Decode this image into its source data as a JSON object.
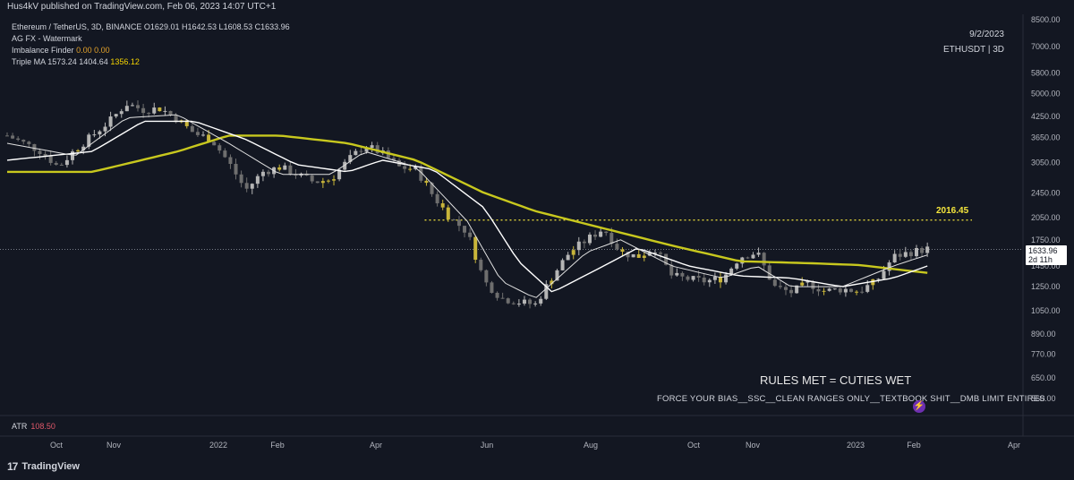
{
  "publisher": "Hus4kV published on TradingView.com, Feb 06, 2023 14:07 UTC+1",
  "legend": {
    "title": "Ethereum / TetherUS, 3D, BINANCE",
    "ohlc": {
      "O": "1629.01",
      "H": "1642.53",
      "L": "1608.53",
      "C": "1633.96"
    },
    "o_label": "O",
    "h_label": "H",
    "l_label": "L",
    "c_label": "C",
    "indicator1": "AG FX - Watermark",
    "indicator2_name": "Imbalance Finder",
    "indicator2_v1": "0.00",
    "indicator2_v2": "0.00",
    "indicator3_name": "Triple MA",
    "indicator3_v1": "1573.24",
    "indicator3_v2": "1404.64",
    "indicator3_v3": "1356.12"
  },
  "watermark": {
    "date": "9/2/2023",
    "symbol": "ETHUSDT | 3D"
  },
  "atr": {
    "label": "ATR",
    "value": "108.50"
  },
  "annotations": {
    "headline": "RULES MET = CUTIES WET",
    "subline": "FORCE YOUR BIAS__SSC__CLEAN RANGES ONLY__TEXTBOOK SHIT__DMB LIMIT ENTIRES",
    "level": "2016.45"
  },
  "price_tag": {
    "price": "1633.96",
    "countdown": "2d 11h"
  },
  "footer": {
    "brand": "TradingView",
    "logo": "17"
  },
  "colors": {
    "background": "#131722",
    "candle_up": "#b5b5b5",
    "candle_down": "#6e6e6e",
    "candle_highlight": "#c8b53a",
    "ma_fast": "#e0e0e0",
    "ma_mid": "#ffffff",
    "ma_slow": "#c8c81e",
    "level_line": "#f5e63c"
  },
  "chart_data": {
    "type": "candlestick",
    "scale": "log",
    "y_ticks": [
      8500,
      7000,
      5800,
      5000,
      4250,
      3650,
      3050,
      2450,
      2050,
      1750,
      1450,
      1250,
      1050,
      890,
      770,
      650,
      560
    ],
    "y_tick_labels": [
      "8500.00",
      "7000.00",
      "5800.00",
      "5000.00",
      "4250.00",
      "3650.00",
      "3050.00",
      "2450.00",
      "2050.00",
      "1750.00",
      "1450.00",
      "1250.00",
      "1050.00",
      "890.00",
      "770.00",
      "650.00",
      "560.00"
    ],
    "x_tick_labels": [
      "Oct",
      "Nov",
      "2022",
      "Feb",
      "Apr",
      "Jun",
      "Aug",
      "Oct",
      "Nov",
      "2023",
      "Feb",
      "Apr"
    ],
    "path": [
      [
        0,
        3700
      ],
      [
        0.02,
        3500
      ],
      [
        0.04,
        3300
      ],
      [
        0.06,
        2950
      ],
      [
        0.08,
        3350
      ],
      [
        0.1,
        3700
      ],
      [
        0.12,
        4100
      ],
      [
        0.14,
        4650
      ],
      [
        0.16,
        4450
      ],
      [
        0.18,
        4500
      ],
      [
        0.2,
        4150
      ],
      [
        0.22,
        3750
      ],
      [
        0.24,
        3600
      ],
      [
        0.26,
        3050
      ],
      [
        0.28,
        2500
      ],
      [
        0.3,
        2850
      ],
      [
        0.32,
        2950
      ],
      [
        0.34,
        2800
      ],
      [
        0.36,
        2650
      ],
      [
        0.38,
        2700
      ],
      [
        0.4,
        3100
      ],
      [
        0.42,
        3450
      ],
      [
        0.44,
        3250
      ],
      [
        0.46,
        2950
      ],
      [
        0.48,
        2900
      ],
      [
        0.5,
        2400
      ],
      [
        0.52,
        2050
      ],
      [
        0.54,
        1850
      ],
      [
        0.56,
        1300
      ],
      [
        0.58,
        1150
      ],
      [
        0.6,
        1120
      ],
      [
        0.62,
        1100
      ],
      [
        0.64,
        1350
      ],
      [
        0.66,
        1600
      ],
      [
        0.68,
        1750
      ],
      [
        0.7,
        1900
      ],
      [
        0.72,
        1600
      ],
      [
        0.74,
        1550
      ],
      [
        0.76,
        1650
      ],
      [
        0.78,
        1350
      ],
      [
        0.8,
        1320
      ],
      [
        0.82,
        1300
      ],
      [
        0.84,
        1330
      ],
      [
        0.86,
        1550
      ],
      [
        0.88,
        1600
      ],
      [
        0.9,
        1250
      ],
      [
        0.92,
        1200
      ],
      [
        0.94,
        1280
      ],
      [
        0.96,
        1210
      ],
      [
        0.98,
        1230
      ],
      [
        1.0,
        1210
      ],
      [
        1.02,
        1300
      ],
      [
        1.04,
        1550
      ],
      [
        1.06,
        1600
      ],
      [
        1.08,
        1640
      ]
    ],
    "ma_slow_path": [
      [
        0,
        2850
      ],
      [
        0.1,
        2850
      ],
      [
        0.2,
        3300
      ],
      [
        0.26,
        3700
      ],
      [
        0.32,
        3700
      ],
      [
        0.4,
        3500
      ],
      [
        0.48,
        3100
      ],
      [
        0.56,
        2450
      ],
      [
        0.62,
        2150
      ],
      [
        0.7,
        1900
      ],
      [
        0.78,
        1680
      ],
      [
        0.86,
        1500
      ],
      [
        0.94,
        1480
      ],
      [
        1.0,
        1460
      ],
      [
        1.08,
        1380
      ]
    ],
    "ma_mid_path": [
      [
        0,
        3100
      ],
      [
        0.1,
        3300
      ],
      [
        0.16,
        4100
      ],
      [
        0.22,
        4100
      ],
      [
        0.28,
        3600
      ],
      [
        0.34,
        3000
      ],
      [
        0.4,
        2850
      ],
      [
        0.44,
        3100
      ],
      [
        0.5,
        2900
      ],
      [
        0.56,
        2200
      ],
      [
        0.6,
        1500
      ],
      [
        0.64,
        1200
      ],
      [
        0.7,
        1450
      ],
      [
        0.74,
        1650
      ],
      [
        0.8,
        1450
      ],
      [
        0.86,
        1350
      ],
      [
        0.92,
        1330
      ],
      [
        0.98,
        1250
      ],
      [
        1.04,
        1330
      ],
      [
        1.08,
        1450
      ]
    ],
    "ma_fast_path": [
      [
        0,
        3500
      ],
      [
        0.08,
        3200
      ],
      [
        0.14,
        4200
      ],
      [
        0.2,
        4300
      ],
      [
        0.26,
        3500
      ],
      [
        0.32,
        2800
      ],
      [
        0.38,
        2800
      ],
      [
        0.42,
        3300
      ],
      [
        0.48,
        2950
      ],
      [
        0.54,
        2000
      ],
      [
        0.58,
        1300
      ],
      [
        0.62,
        1150
      ],
      [
        0.68,
        1600
      ],
      [
        0.72,
        1750
      ],
      [
        0.78,
        1450
      ],
      [
        0.84,
        1330
      ],
      [
        0.88,
        1450
      ],
      [
        0.92,
        1250
      ],
      [
        0.98,
        1250
      ],
      [
        1.04,
        1450
      ],
      [
        1.08,
        1570
      ]
    ],
    "level": 2016.45,
    "last": 1633.96
  }
}
